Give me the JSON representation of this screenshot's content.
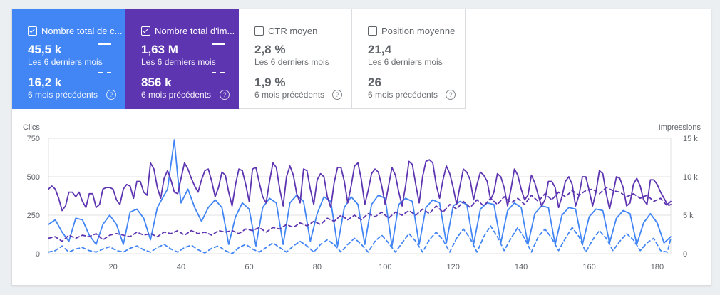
{
  "metrics": [
    {
      "label": "Nombre total de c...",
      "checked": true,
      "current": "45,5 k",
      "current_period": "Les 6 derniers mois",
      "previous": "16,2 k",
      "previous_period": "6 mois précédents"
    },
    {
      "label": "Nombre total d'im...",
      "checked": true,
      "current": "1,63 M",
      "current_period": "Les 6 derniers mois",
      "previous": "856 k",
      "previous_period": "6 mois précédents"
    },
    {
      "label": "CTR moyen",
      "checked": false,
      "current": "2,8 %",
      "current_period": "Les 6 derniers mois",
      "previous": "1,9 %",
      "previous_period": "6 mois précédents"
    },
    {
      "label": "Position moyenne",
      "checked": false,
      "current": "21,4",
      "current_period": "Les 6 derniers mois",
      "previous": "26",
      "previous_period": "6 mois précédents"
    }
  ],
  "colors": {
    "clicks": "#4285f4",
    "impressions": "#5e35b1"
  },
  "icons": {
    "help": "?"
  },
  "chart_data": {
    "type": "line",
    "left_axis": {
      "label": "Clics",
      "ticks": [
        "750",
        "500",
        "250",
        "0"
      ],
      "ylim": [
        0,
        750
      ]
    },
    "right_axis": {
      "label": "Impressions",
      "ticks": [
        "15 k",
        "10 k",
        "5 k",
        "0"
      ],
      "ylim": [
        0,
        15000
      ]
    },
    "x_ticks": [
      "20",
      "40",
      "60",
      "80",
      "100",
      "120",
      "140",
      "160",
      "180"
    ],
    "xlim": [
      1,
      184
    ],
    "grid": true,
    "series": [
      {
        "key": "clicks_current",
        "axis": "left",
        "color": "#4285f4",
        "dashed": false,
        "x": [
          1,
          3,
          5,
          7,
          9,
          11,
          13,
          15,
          17,
          19,
          21,
          23,
          25,
          27,
          29,
          31,
          33,
          35,
          36,
          38,
          39,
          40,
          42,
          44,
          46,
          48,
          50,
          52,
          54,
          56,
          58,
          60,
          62,
          64,
          66,
          68,
          70,
          72,
          74,
          76,
          78,
          80,
          82,
          84,
          86,
          88,
          90,
          92,
          94,
          96,
          98,
          100,
          102,
          104,
          106,
          108,
          110,
          112,
          114,
          116,
          118,
          120,
          122,
          124,
          126,
          128,
          130,
          132,
          134,
          136,
          138,
          140,
          142,
          144,
          146,
          148,
          150,
          152,
          154,
          156,
          158,
          160,
          162,
          164,
          166,
          168,
          170,
          172,
          174,
          176,
          178,
          180,
          182,
          184
        ],
        "y": [
          190,
          220,
          140,
          80,
          230,
          220,
          120,
          60,
          190,
          250,
          190,
          60,
          270,
          290,
          230,
          90,
          300,
          380,
          420,
          740,
          500,
          330,
          420,
          300,
          210,
          300,
          350,
          300,
          60,
          240,
          330,
          290,
          50,
          300,
          360,
          330,
          60,
          330,
          380,
          340,
          80,
          260,
          370,
          340,
          50,
          300,
          370,
          320,
          60,
          320,
          380,
          360,
          50,
          320,
          360,
          340,
          60,
          300,
          350,
          330,
          70,
          310,
          340,
          320,
          60,
          290,
          330,
          320,
          70,
          280,
          330,
          300,
          60,
          260,
          310,
          300,
          60,
          250,
          300,
          290,
          60,
          240,
          290,
          280,
          70,
          230,
          280,
          260,
          60,
          200,
          260,
          200,
          70,
          110
        ]
      },
      {
        "key": "clicks_previous",
        "axis": "left",
        "color": "#4285f4",
        "dashed": true,
        "x": [
          1,
          3,
          5,
          7,
          9,
          11,
          13,
          15,
          17,
          19,
          21,
          23,
          25,
          27,
          29,
          31,
          33,
          35,
          37,
          39,
          41,
          43,
          45,
          47,
          49,
          51,
          53,
          55,
          57,
          59,
          61,
          63,
          65,
          67,
          69,
          71,
          73,
          75,
          77,
          79,
          81,
          83,
          85,
          87,
          89,
          91,
          93,
          95,
          97,
          99,
          101,
          103,
          105,
          107,
          109,
          111,
          113,
          115,
          117,
          119,
          121,
          123,
          125,
          127,
          129,
          131,
          133,
          135,
          137,
          139,
          141,
          143,
          145,
          147,
          149,
          151,
          153,
          155,
          157,
          159,
          161,
          163,
          165,
          167,
          169,
          171,
          173,
          175,
          177,
          179,
          181,
          183,
          184
        ],
        "y": [
          10,
          20,
          50,
          10,
          30,
          40,
          20,
          10,
          30,
          45,
          20,
          10,
          35,
          50,
          25,
          10,
          40,
          60,
          30,
          10,
          40,
          55,
          25,
          5,
          35,
          50,
          20,
          0,
          40,
          60,
          30,
          10,
          40,
          70,
          40,
          10,
          50,
          80,
          50,
          10,
          60,
          90,
          60,
          10,
          60,
          100,
          60,
          10,
          80,
          120,
          70,
          10,
          70,
          130,
          80,
          10,
          90,
          140,
          90,
          10,
          100,
          160,
          100,
          10,
          110,
          180,
          110,
          20,
          100,
          170,
          100,
          10,
          110,
          160,
          100,
          20,
          100,
          170,
          110,
          10,
          90,
          150,
          100,
          20,
          80,
          130,
          90,
          20,
          70,
          100,
          20,
          10,
          100
        ]
      },
      {
        "key": "impressions_current",
        "axis": "right",
        "color": "#5e35b1",
        "dashed": false,
        "x": [
          1,
          2,
          3,
          4,
          5,
          6,
          7,
          8,
          9,
          10,
          11,
          12,
          13,
          14,
          15,
          16,
          17,
          18,
          19,
          20,
          21,
          22,
          23,
          24,
          25,
          26,
          27,
          28,
          29,
          30,
          31,
          32,
          33,
          34,
          35,
          36,
          37,
          38,
          39,
          40,
          41,
          42,
          43,
          44,
          45,
          46,
          47,
          48,
          49,
          50,
          51,
          52,
          53,
          54,
          55,
          56,
          57,
          58,
          59,
          60,
          61,
          62,
          63,
          64,
          65,
          66,
          67,
          68,
          69,
          70,
          71,
          72,
          73,
          74,
          75,
          76,
          77,
          78,
          79,
          80,
          81,
          82,
          83,
          84,
          85,
          86,
          87,
          88,
          89,
          90,
          91,
          92,
          93,
          94,
          95,
          96,
          97,
          98,
          99,
          100,
          101,
          102,
          103,
          104,
          105,
          106,
          107,
          108,
          109,
          110,
          111,
          112,
          113,
          114,
          115,
          116,
          117,
          118,
          119,
          120,
          121,
          122,
          123,
          124,
          125,
          126,
          127,
          128,
          129,
          130,
          131,
          132,
          133,
          134,
          135,
          136,
          137,
          138,
          139,
          140,
          141,
          142,
          143,
          144,
          145,
          146,
          147,
          148,
          149,
          150,
          151,
          152,
          153,
          154,
          155,
          156,
          157,
          158,
          159,
          160,
          161,
          162,
          163,
          164,
          165,
          166,
          167,
          168,
          169,
          170,
          171,
          172,
          173,
          174,
          175,
          176,
          177,
          178,
          179,
          180,
          181,
          182,
          183,
          184
        ],
        "y": [
          8400,
          8800,
          8400,
          7200,
          5600,
          6200,
          8000,
          8000,
          7400,
          8000,
          6800,
          6000,
          7800,
          7800,
          6000,
          6400,
          8400,
          8600,
          8600,
          8400,
          7000,
          6400,
          8400,
          9000,
          8800,
          7200,
          9400,
          9400,
          8000,
          7600,
          11800,
          11000,
          8600,
          7200,
          9800,
          10800,
          9600,
          8000,
          7800,
          9800,
          11800,
          11000,
          9800,
          8800,
          8000,
          9600,
          10800,
          11000,
          9400,
          7400,
          8600,
          10600,
          10200,
          8000,
          6200,
          9000,
          11000,
          10800,
          9000,
          6800,
          11000,
          11200,
          9200,
          7400,
          6600,
          9400,
          11800,
          11200,
          8400,
          6200,
          10000,
          11400,
          10200,
          7800,
          6600,
          11000,
          10800,
          8400,
          6400,
          9600,
          10400,
          10000,
          7400,
          6000,
          9200,
          11200,
          11200,
          9400,
          6600,
          8800,
          11400,
          11800,
          9600,
          6400,
          8200,
          10400,
          11000,
          10600,
          8800,
          6400,
          8800,
          11200,
          10200,
          8000,
          6200,
          8800,
          12000,
          11600,
          9000,
          6600,
          10000,
          12000,
          12200,
          11800,
          9000,
          7200,
          9600,
          11400,
          10400,
          8600,
          6400,
          8800,
          11000,
          10600,
          9600,
          7000,
          9000,
          10600,
          10200,
          9400,
          7000,
          8000,
          10400,
          10000,
          8600,
          6200,
          8400,
          11000,
          10200,
          8400,
          7000,
          7600,
          10200,
          9200,
          7600,
          6200,
          7000,
          9400,
          9400,
          8600,
          6000,
          7400,
          9400,
          10000,
          9000,
          6200,
          7600,
          10000,
          10000,
          8200,
          6200,
          8000,
          10800,
          10400,
          7800,
          5800,
          7800,
          10000,
          9800,
          8600,
          6200,
          6600,
          9000,
          9800,
          8800,
          7000,
          6400,
          9600,
          9600,
          9000,
          8000,
          7200,
          6400,
          6800
        ]
      },
      {
        "key": "impressions_previous",
        "axis": "right",
        "color": "#5e35b1",
        "dashed": true,
        "x": [
          1,
          3,
          5,
          7,
          9,
          11,
          13,
          15,
          17,
          19,
          21,
          23,
          25,
          27,
          29,
          31,
          33,
          35,
          37,
          39,
          41,
          43,
          45,
          47,
          49,
          51,
          53,
          55,
          57,
          59,
          61,
          63,
          65,
          67,
          69,
          71,
          73,
          75,
          77,
          79,
          81,
          83,
          85,
          87,
          89,
          91,
          93,
          95,
          97,
          99,
          101,
          103,
          105,
          107,
          109,
          111,
          113,
          115,
          117,
          119,
          121,
          123,
          125,
          127,
          129,
          131,
          133,
          135,
          137,
          139,
          141,
          143,
          145,
          147,
          149,
          151,
          153,
          155,
          157,
          159,
          161,
          163,
          165,
          167,
          169,
          171,
          173,
          175,
          177,
          179,
          181,
          183,
          184
        ],
        "y": [
          2000,
          2200,
          1600,
          2400,
          2000,
          2400,
          2200,
          2600,
          1800,
          2400,
          2600,
          2400,
          2200,
          2800,
          2400,
          2600,
          2200,
          2800,
          2600,
          3000,
          2400,
          3000,
          2600,
          2800,
          2400,
          3000,
          2800,
          3000,
          2600,
          3200,
          3000,
          3400,
          2800,
          3400,
          3200,
          3800,
          3400,
          4000,
          3600,
          4200,
          3800,
          4600,
          4200,
          5000,
          4400,
          5000,
          4400,
          5200,
          4800,
          5400,
          4600,
          5400,
          5000,
          5600,
          5000,
          5800,
          5200,
          6200,
          5400,
          6400,
          5800,
          6800,
          6000,
          7000,
          6200,
          7200,
          6400,
          7400,
          6600,
          7200,
          6400,
          7600,
          6800,
          7800,
          7000,
          8000,
          7400,
          8200,
          7600,
          8200,
          8400,
          7800,
          8600,
          8200,
          8000,
          7400,
          7800,
          7200,
          7600,
          6800,
          7200,
          6200,
          6400
        ]
      }
    ]
  }
}
